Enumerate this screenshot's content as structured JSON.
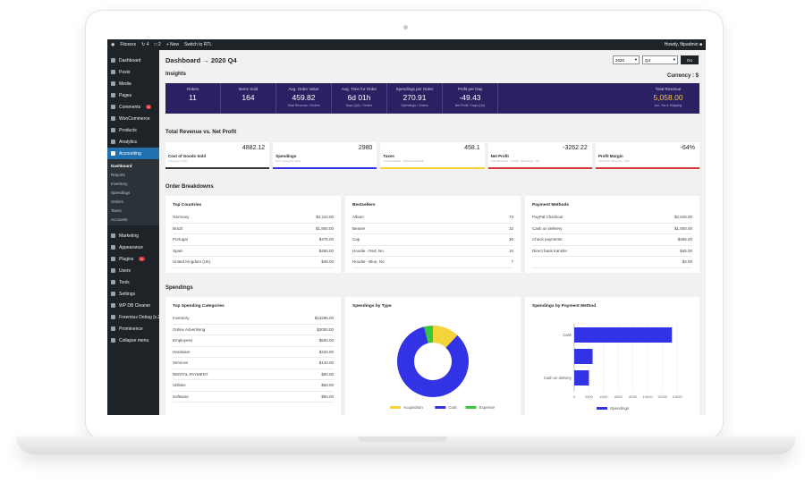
{
  "adminbar": {
    "site": "Fitorexx",
    "updates": "4",
    "comments": "2",
    "new": "+ New",
    "rtl": "Switch to RTL",
    "howdy": "Howdy, fitpadmin"
  },
  "sidebar": {
    "items": [
      {
        "label": "Dashboard",
        "icon": "dashboard-icon"
      },
      {
        "label": "Posts",
        "icon": "pin-icon"
      },
      {
        "label": "Media",
        "icon": "media-icon"
      },
      {
        "label": "Pages",
        "icon": "page-icon"
      },
      {
        "label": "Comments",
        "icon": "comment-icon",
        "badge": "6"
      },
      {
        "label": "WooCommerce",
        "icon": "woo-icon"
      },
      {
        "label": "Products",
        "icon": "products-icon"
      },
      {
        "label": "Analytics",
        "icon": "analytics-icon"
      },
      {
        "label": "Accounting",
        "icon": "accounting-icon",
        "active": true
      }
    ],
    "submenu": [
      "Dashboard",
      "Reports",
      "Inventory",
      "Spendings",
      "Orders",
      "Taxes",
      "Accounts"
    ],
    "items_after": [
      {
        "label": "Marketing",
        "icon": "marketing-icon"
      },
      {
        "label": "Appearance",
        "icon": "brush-icon"
      },
      {
        "label": "Plugins",
        "icon": "plugin-icon",
        "badge": "6"
      },
      {
        "label": "Users",
        "icon": "users-icon"
      },
      {
        "label": "Tools",
        "icon": "tools-icon"
      },
      {
        "label": "Settings",
        "icon": "settings-icon"
      },
      {
        "label": "WP DB Cleaner",
        "icon": "db-icon"
      },
      {
        "label": "Freemius Debug [v.2.3.0]",
        "icon": "bug-icon"
      },
      {
        "label": "Prominence",
        "icon": "prominence-icon"
      },
      {
        "label": "Collapse menu",
        "icon": "collapse-icon"
      }
    ]
  },
  "header": {
    "title": "Dashboard → 2020 Q4",
    "year": "2020",
    "quarter": "Q4",
    "go": "Go"
  },
  "insights": {
    "title": "Insights",
    "currency": "Currency : $",
    "cells": [
      {
        "label": "Orders",
        "value": "11",
        "sub": ""
      },
      {
        "label": "Items Sold",
        "value": "164",
        "sub": ""
      },
      {
        "label": "Avg. Order Value",
        "value": "459.82",
        "sub": "Total Revenue / Orders"
      },
      {
        "label": "Avg. Time for Order",
        "value": "6d 01h",
        "sub": "Days (Q4) / Orders"
      },
      {
        "label": "Spendings per Order",
        "value": "270.91",
        "sub": "Spendings / Orders"
      },
      {
        "label": "Profit per Day",
        "value": "-49.43",
        "sub": "Net Profit / Days (Q4)"
      }
    ],
    "total": {
      "label": "Total Revenue",
      "value": "5,058.00",
      "sub": "incl. Tax & Shipping"
    }
  },
  "revenue": {
    "title": "Total Revenue vs. Net Profit",
    "cards": [
      {
        "label": "Cost of Goods Sold",
        "value": "4882.12",
        "desc": "Inventory Costs",
        "color": "#32373c"
      },
      {
        "label": "Spendings",
        "value": "2980",
        "desc": "Excl. Inventory Costs",
        "color": "#3333e6"
      },
      {
        "label": "Taxes",
        "value": "458.1",
        "desc": "Taxes Payable - Taxes Receivable",
        "color": "#f5d33a"
      },
      {
        "label": "Net Profit",
        "value": "-3262.22",
        "desc": "Total Revenue - COGS - Spendings - Tax",
        "color": "#d63638"
      },
      {
        "label": "Profit Margin",
        "value": "-64%",
        "desc": "Net Profit / Revenue * 100",
        "color": "#d63638"
      }
    ]
  },
  "orders": {
    "title": "Order Breakdowns",
    "countries": {
      "title": "Top Countries",
      "rows": [
        [
          "Germany",
          "$2,110.00"
        ],
        [
          "Brazil",
          "$1,800.00"
        ],
        [
          "Portugal",
          "$475.00"
        ],
        [
          "Spain",
          "$450.00"
        ],
        [
          "United Kingdom (UK)",
          "$45.00"
        ]
      ]
    },
    "bestsellers": {
      "title": "Bestsellers",
      "rows": [
        [
          "Album",
          "73"
        ],
        [
          "Beanie",
          "32"
        ],
        [
          "Cap",
          "30"
        ],
        [
          "Hoodie - Red, No",
          "10"
        ],
        [
          "Hoodie - Blue, No",
          "7"
        ]
      ]
    },
    "payments": {
      "title": "Payment Methods",
      "rows": [
        [
          "PayPal Checkout",
          "$2,645.00"
        ],
        [
          "Cash on delivery",
          "$1,800.00"
        ],
        [
          "Check payments",
          "$456.00"
        ],
        [
          "Direct bank transfer",
          "$45.00"
        ],
        [
          "",
          "$2.00"
        ]
      ]
    }
  },
  "spendings": {
    "title": "Spendings",
    "categories": {
      "title": "Top Spending Categories",
      "rows": [
        [
          "Inventory",
          "$13296.00"
        ],
        [
          "Online Advertising",
          "$2000.00"
        ],
        [
          "Employees",
          "$500.00"
        ],
        [
          "Hardware",
          "$220.00"
        ],
        [
          "Services",
          "$120.00"
        ],
        [
          "RENTAL PAYMENT",
          "$60.00"
        ],
        [
          "Utilities",
          "$60.00"
        ],
        [
          "Software",
          "$50.00"
        ]
      ]
    },
    "by_type_title": "Spendings by Type",
    "by_method_title": "Spendings by Payment Method"
  },
  "chart_data": [
    {
      "type": "pie",
      "title": "Spendings by Type",
      "categories": [
        "Acquisition",
        "Cost",
        "Expense"
      ],
      "values": [
        12,
        84,
        4
      ],
      "colors": [
        "#f5d33a",
        "#3333e6",
        "#37c837"
      ]
    },
    {
      "type": "bar",
      "orientation": "horizontal",
      "title": "Spendings by Payment Method",
      "categories": [
        "Cash",
        "",
        "Cash on delivery"
      ],
      "series": [
        {
          "name": "Spendings",
          "values": [
            13296,
            2500,
            2000
          ]
        }
      ],
      "xlim": [
        0,
        14000
      ],
      "xticks": [
        0,
        2000,
        4000,
        6000,
        8000,
        10000,
        12000,
        14000
      ],
      "color": "#3333e6"
    }
  ]
}
